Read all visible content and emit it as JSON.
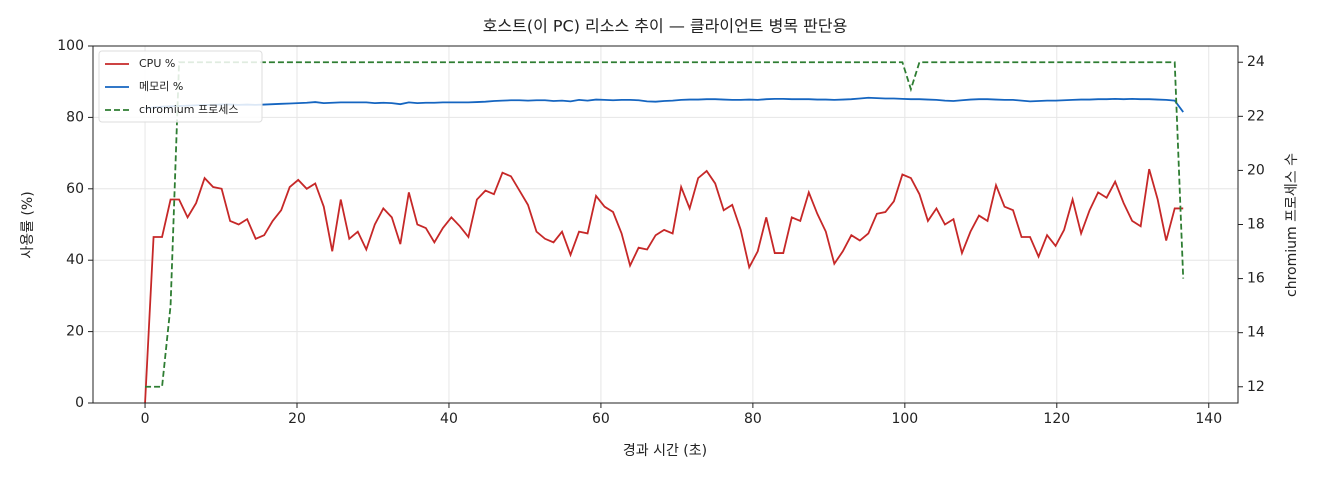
{
  "chart_data": {
    "type": "line",
    "title": "호스트(이 PC) 리소스 추이 — 클라이언트 병목 판단용",
    "xlabel": "경과 시간 (초)",
    "ylabel": "사용률 (%)",
    "y2label": "chromium 프로세스 수",
    "x": [
      0,
      1.12,
      2.24,
      3.36,
      4.48,
      5.6,
      6.72,
      7.84,
      8.96,
      10.08,
      11.2,
      12.32,
      13.44,
      14.56,
      15.68,
      16.8,
      17.92,
      19.04,
      20.16,
      21.28,
      22.4,
      23.52,
      24.64,
      25.76,
      26.88,
      28,
      29.12,
      30.24,
      31.36,
      32.48,
      33.6,
      34.72,
      35.84,
      36.96,
      38.08,
      39.2,
      40.32,
      41.44,
      42.56,
      43.68,
      44.8,
      45.92,
      47.04,
      48.16,
      49.28,
      50.4,
      51.52,
      52.64,
      53.76,
      54.88,
      56,
      57.12,
      58.24,
      59.36,
      60.48,
      61.6,
      62.72,
      63.84,
      64.96,
      66.08,
      67.2,
      68.32,
      69.44,
      70.56,
      71.68,
      72.8,
      73.92,
      75.04,
      76.16,
      77.28,
      78.4,
      79.52,
      80.64,
      81.76,
      82.88,
      84,
      85.12,
      86.24,
      87.36,
      88.48,
      89.6,
      90.72,
      91.84,
      92.96,
      94.08,
      95.2,
      96.32,
      97.44,
      98.56,
      99.68,
      100.8,
      101.92,
      103.04,
      104.16,
      105.28,
      106.4,
      107.52,
      108.64,
      109.76,
      110.88,
      112,
      113.12,
      114.24,
      115.36,
      116.48,
      117.6,
      118.72,
      119.84,
      120.96,
      122.08,
      123.2,
      124.32,
      125.44,
      126.56,
      127.68,
      128.8,
      129.92,
      131.04,
      132.16,
      133.28,
      134.4,
      135.52,
      136.64
    ],
    "series": [
      {
        "name": "CPU %",
        "color": "#c62828",
        "axis": "y",
        "values": [
          0,
          46.5,
          46.5,
          57,
          57,
          52,
          56,
          63,
          60.5,
          60,
          51,
          50,
          51.5,
          46,
          47,
          51,
          54,
          60.5,
          62.5,
          60,
          61.5,
          55,
          42.5,
          57,
          46,
          48,
          43,
          50,
          54.5,
          52,
          44.5,
          59,
          50,
          49,
          45,
          49,
          52,
          49.5,
          46.5,
          57,
          59.5,
          58.5,
          64.5,
          63.5,
          59.5,
          55.5,
          48,
          46,
          45,
          48,
          41.5,
          48,
          47.5,
          58,
          55,
          53.5,
          47.5,
          38.5,
          43.5,
          43,
          47,
          48.5,
          47.5,
          60.5,
          54.5,
          63,
          65,
          61.5,
          54,
          55.5,
          48.5,
          38,
          42.5,
          52,
          42,
          42,
          52,
          51,
          59,
          53,
          48,
          39,
          42.5,
          47,
          45.5,
          47.5,
          53,
          53.5,
          56.5,
          64,
          63,
          58.5,
          51,
          54.5,
          50,
          51.5,
          42,
          48,
          52.5,
          51,
          61,
          55,
          54,
          46.5,
          46.5,
          41,
          47,
          44,
          48.5,
          57,
          47.5,
          54,
          59,
          57.5,
          62,
          56,
          51,
          49.5,
          65.5,
          57,
          45.5,
          54.5,
          54.5
        ]
      },
      {
        "name": "메모리 %",
        "color": "#1565c0",
        "axis": "y",
        "values": [
          82.5,
          82.8,
          83,
          83.1,
          83.2,
          83.3,
          83.4,
          83.5,
          83.5,
          83.6,
          83.6,
          83.5,
          83.6,
          83.5,
          83.6,
          83.7,
          83.8,
          83.9,
          84,
          84.1,
          84.3,
          84,
          84.1,
          84.2,
          84.2,
          84.2,
          84.2,
          84,
          84.1,
          84,
          83.7,
          84.2,
          84,
          84.1,
          84.1,
          84.2,
          84.2,
          84.2,
          84.2,
          84.3,
          84.4,
          84.6,
          84.7,
          84.8,
          84.8,
          84.7,
          84.8,
          84.8,
          84.6,
          84.7,
          84.5,
          84.9,
          84.7,
          85,
          84.9,
          84.8,
          84.9,
          84.9,
          84.8,
          84.5,
          84.4,
          84.6,
          84.7,
          84.9,
          85,
          85,
          85.1,
          85.1,
          85,
          84.9,
          84.9,
          85,
          84.9,
          85.1,
          85.2,
          85.2,
          85.1,
          85.1,
          85.1,
          85,
          85,
          84.9,
          85,
          85.1,
          85.3,
          85.5,
          85.4,
          85.3,
          85.3,
          85.2,
          85.1,
          85.1,
          85,
          84.9,
          84.7,
          84.6,
          84.8,
          85,
          85.1,
          85.1,
          85,
          84.9,
          84.9,
          84.7,
          84.5,
          84.6,
          84.7,
          84.7,
          84.8,
          84.9,
          85,
          85,
          85.1,
          85.1,
          85.2,
          85.1,
          85.2,
          85.1,
          85.1,
          85,
          84.9,
          84.7,
          81.5
        ]
      },
      {
        "name": "chromium 프로세스",
        "color": "#2e7d32",
        "axis": "y2",
        "linestyle": "dashed",
        "values": [
          12,
          12,
          12,
          15,
          24,
          24,
          24,
          24,
          24,
          24,
          24,
          24,
          24,
          24,
          24,
          24,
          24,
          24,
          24,
          24,
          24,
          24,
          24,
          24,
          24,
          24,
          24,
          24,
          24,
          24,
          24,
          24,
          24,
          24,
          24,
          24,
          24,
          24,
          24,
          24,
          24,
          24,
          24,
          24,
          24,
          24,
          24,
          24,
          24,
          24,
          24,
          24,
          24,
          24,
          24,
          24,
          24,
          24,
          24,
          24,
          24,
          24,
          24,
          24,
          24,
          24,
          24,
          24,
          24,
          24,
          24,
          24,
          24,
          24,
          24,
          24,
          24,
          24,
          24,
          24,
          24,
          24,
          24,
          24,
          24,
          24,
          24,
          24,
          24,
          24,
          23,
          24,
          24,
          24,
          24,
          24,
          24,
          24,
          24,
          24,
          24,
          24,
          24,
          24,
          24,
          24,
          24,
          24,
          24,
          24,
          24,
          24,
          24,
          24,
          24,
          24,
          24,
          24,
          24,
          24,
          24,
          24,
          16
        ]
      }
    ],
    "xlim": [
      -6.85,
      143.85
    ],
    "xticks": [
      0,
      20,
      40,
      60,
      80,
      100,
      120,
      140
    ],
    "ylim": [
      0,
      100
    ],
    "yticks": [
      0,
      20,
      40,
      60,
      80,
      100
    ],
    "y2lim": [
      11.4,
      24.6
    ],
    "y2ticks": [
      12,
      14,
      16,
      18,
      20,
      22,
      24
    ],
    "grid": true,
    "legend": "upper-left"
  }
}
